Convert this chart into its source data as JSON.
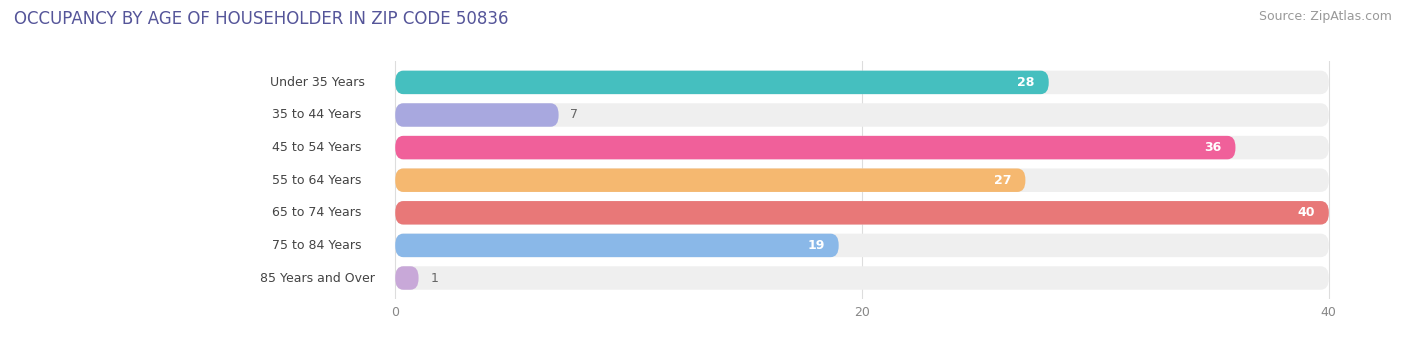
{
  "title": "OCCUPANCY BY AGE OF HOUSEHOLDER IN ZIP CODE 50836",
  "source": "Source: ZipAtlas.com",
  "categories": [
    "Under 35 Years",
    "35 to 44 Years",
    "45 to 54 Years",
    "55 to 64 Years",
    "65 to 74 Years",
    "75 to 84 Years",
    "85 Years and Over"
  ],
  "values": [
    28,
    7,
    36,
    27,
    40,
    19,
    1
  ],
  "bar_colors": [
    "#45bfbf",
    "#a8a8df",
    "#f0609a",
    "#f5b870",
    "#e87878",
    "#8ab8e8",
    "#c8a8d8"
  ],
  "bar_bg_color": "#efefef",
  "xlim_max": 40,
  "xticks": [
    0,
    20,
    40
  ],
  "title_fontsize": 12,
  "source_fontsize": 9,
  "label_fontsize": 9,
  "value_fontsize": 9,
  "bg_color": "#ffffff",
  "label_bg_color": "#ffffff"
}
